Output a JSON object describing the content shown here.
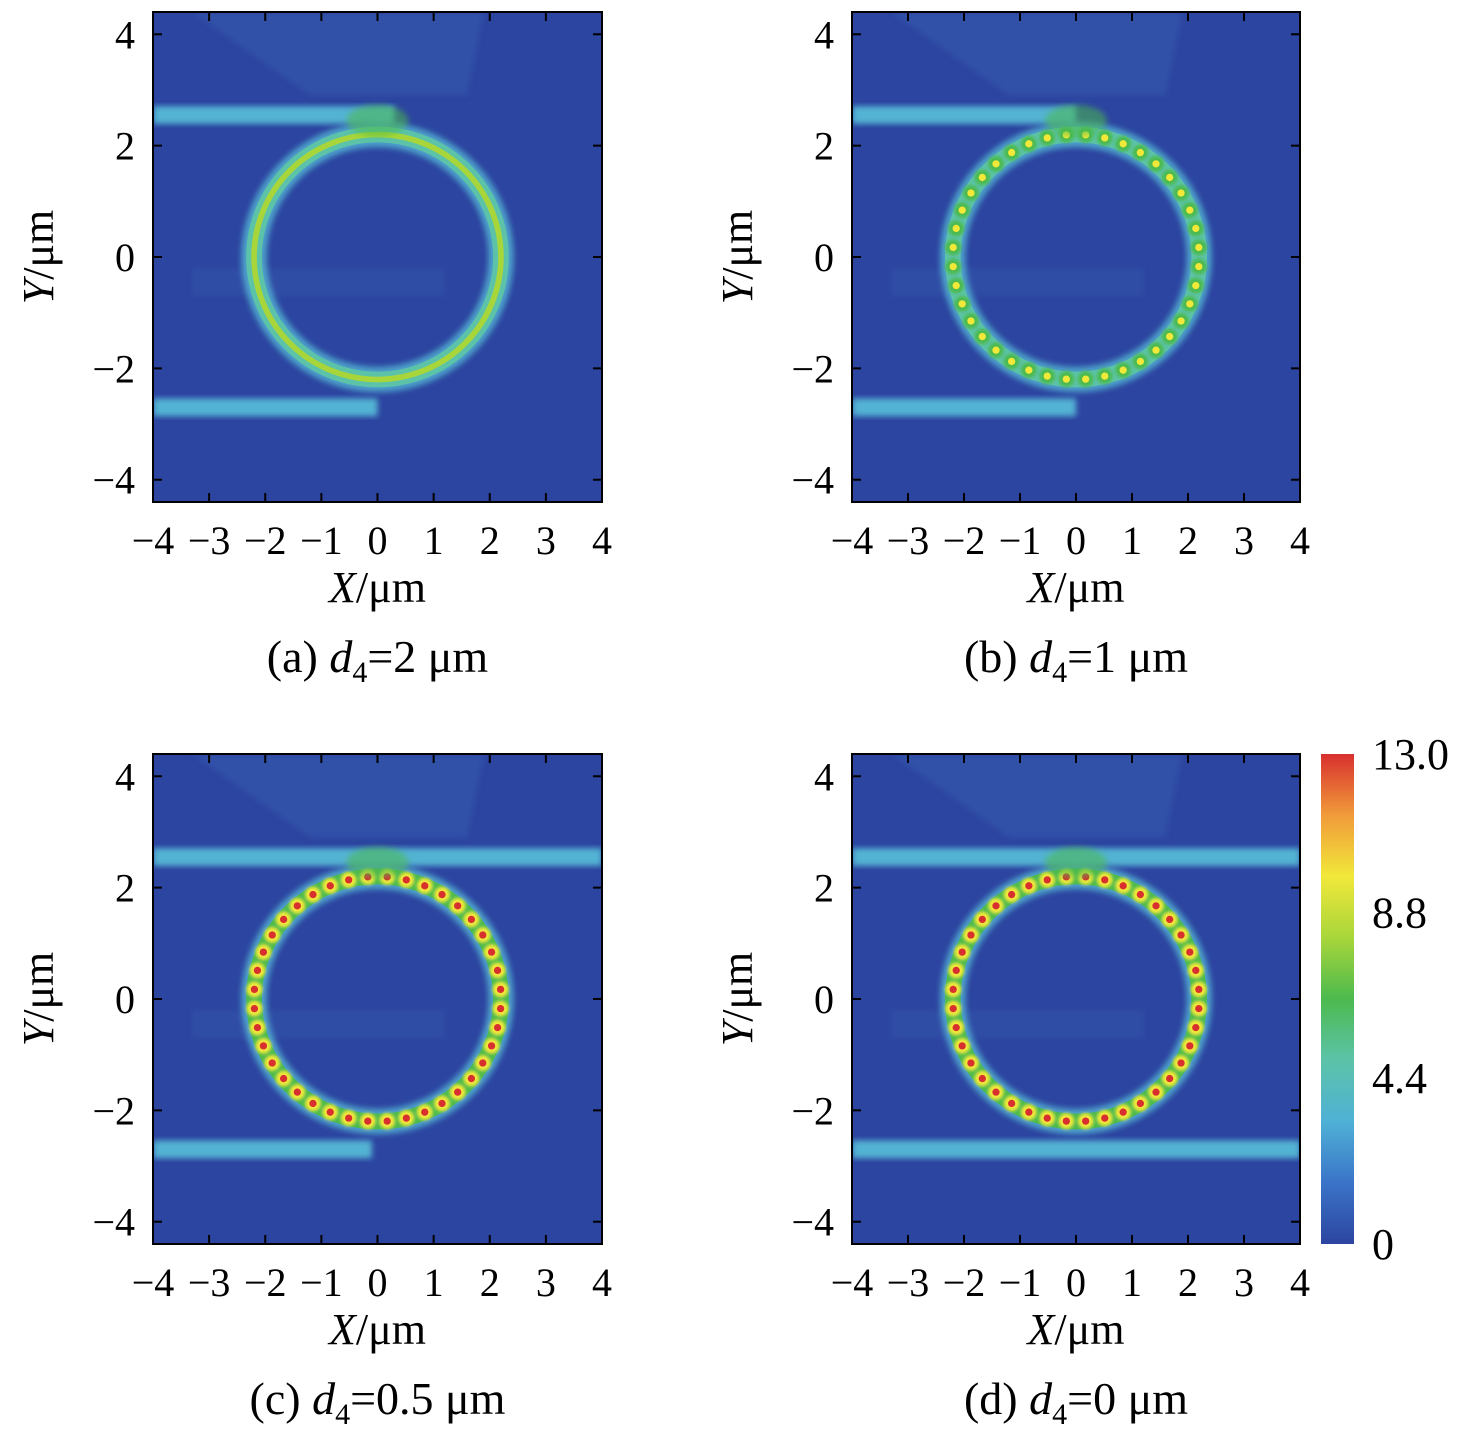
{
  "chart_data": [
    {
      "type": "heatmap",
      "caption": {
        "prefix": "(a) ",
        "symbol": "d",
        "subscript": "4",
        "value": "=2 μm"
      },
      "xlabel": {
        "var": "X",
        "unit": "/μm"
      },
      "ylabel": {
        "var": "Y",
        "unit": "/μm"
      },
      "xlim": [
        -4,
        4
      ],
      "ylim": [
        -4.4,
        4.4
      ],
      "xticks": [
        "−4",
        "−3",
        "−2",
        "−1",
        "0",
        "1",
        "2",
        "3",
        "4"
      ],
      "yticks": [
        "−4",
        "−2",
        "0",
        "2",
        "4"
      ],
      "ring": {
        "center": [
          0,
          0
        ],
        "radius": 2.2,
        "peak_field": 7.5,
        "lobes": 0
      },
      "bus_waveguides": [
        {
          "y": 2.55,
          "x_from": -4,
          "x_to": 0.3
        },
        {
          "y": -2.7,
          "x_from": -4,
          "x_to": 0
        }
      ]
    },
    {
      "type": "heatmap",
      "caption": {
        "prefix": "(b) ",
        "symbol": "d",
        "subscript": "4",
        "value": "=1 μm"
      },
      "xlabel": {
        "var": "X",
        "unit": "/μm"
      },
      "ylabel": {
        "var": "Y",
        "unit": "/μm"
      },
      "xlim": [
        -4,
        4
      ],
      "ylim": [
        -4.4,
        4.4
      ],
      "xticks": [
        "−4",
        "−3",
        "−2",
        "−1",
        "0",
        "1",
        "2",
        "3",
        "4"
      ],
      "yticks": [
        "−4",
        "−2",
        "0",
        "2",
        "4"
      ],
      "ring": {
        "center": [
          0,
          0
        ],
        "radius": 2.2,
        "peak_field": 9.0,
        "lobes": 40
      },
      "bus_waveguides": [
        {
          "y": 2.55,
          "x_from": -4,
          "x_to": 0
        },
        {
          "y": -2.7,
          "x_from": -4,
          "x_to": 0
        }
      ]
    },
    {
      "type": "heatmap",
      "caption": {
        "prefix": "(c) ",
        "symbol": "d",
        "subscript": "4",
        "value": "=0.5 μm"
      },
      "xlabel": {
        "var": "X",
        "unit": "/μm"
      },
      "ylabel": {
        "var": "Y",
        "unit": "/μm"
      },
      "xlim": [
        -4,
        4
      ],
      "ylim": [
        -4.4,
        4.4
      ],
      "xticks": [
        "−4",
        "−3",
        "−2",
        "−1",
        "0",
        "1",
        "2",
        "3",
        "4"
      ],
      "yticks": [
        "−4",
        "−2",
        "0",
        "2",
        "4"
      ],
      "ring": {
        "center": [
          0,
          0
        ],
        "radius": 2.2,
        "peak_field": 13.0,
        "lobes": 40
      },
      "bus_waveguides": [
        {
          "y": 2.55,
          "x_from": -4,
          "x_to": 4
        },
        {
          "y": -2.7,
          "x_from": -4,
          "x_to": -0.1
        }
      ]
    },
    {
      "type": "heatmap",
      "caption": {
        "prefix": "(d) ",
        "symbol": "d",
        "subscript": "4",
        "value": "=0 μm"
      },
      "xlabel": {
        "var": "X",
        "unit": "/μm"
      },
      "ylabel": {
        "var": "Y",
        "unit": "/μm"
      },
      "xlim": [
        -4,
        4
      ],
      "ylim": [
        -4.4,
        4.4
      ],
      "xticks": [
        "−4",
        "−3",
        "−2",
        "−1",
        "0",
        "1",
        "2",
        "3",
        "4"
      ],
      "yticks": [
        "−4",
        "−2",
        "0",
        "2",
        "4"
      ],
      "ring": {
        "center": [
          0,
          0
        ],
        "radius": 2.2,
        "peak_field": 13.0,
        "lobes": 40
      },
      "bus_waveguides": [
        {
          "y": 2.55,
          "x_from": -4,
          "x_to": 4
        },
        {
          "y": -2.7,
          "x_from": -4,
          "x_to": 4
        }
      ]
    }
  ],
  "colorbar": {
    "range": [
      0,
      13
    ],
    "ticks": [
      {
        "value": 13.0,
        "label": "13.0"
      },
      {
        "value": 8.8,
        "label": "8.8"
      },
      {
        "value": 4.4,
        "label": "4.4"
      },
      {
        "value": 0,
        "label": "0"
      }
    ],
    "colors": [
      "#2c45a0",
      "#3a74c8",
      "#4fb1d6",
      "#5cc3a9",
      "#4cba4e",
      "#a8d63a",
      "#f1e83a",
      "#f19b3a",
      "#d8302e"
    ]
  },
  "colors": {
    "background": "#2c45a0",
    "background_light": "#3558ad",
    "waveguide": "#58bfd9",
    "ring_weak": "#4cba4e",
    "hotspot": "#d8302e"
  }
}
